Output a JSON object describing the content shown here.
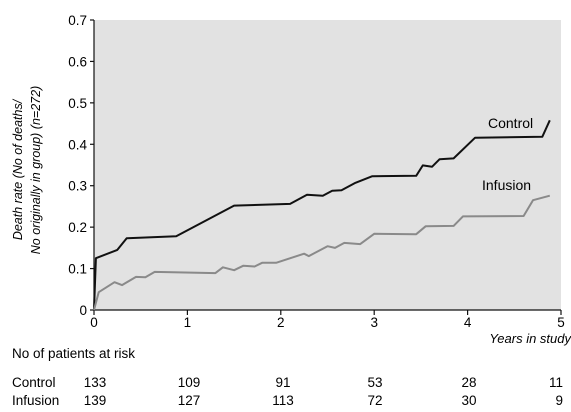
{
  "chart_data": {
    "type": "line",
    "ylabel_line1": "Death rate (No of deaths/",
    "ylabel_line2": "No originally in group) (n=272)",
    "xlabel": "Years in study",
    "xlim": [
      0,
      5
    ],
    "ylim": [
      0,
      0.7
    ],
    "grid": false,
    "x_ticks": [
      "0",
      "1",
      "2",
      "3",
      "4",
      "5"
    ],
    "y_ticks": [
      "0",
      "0.1",
      "0.2",
      "0.3",
      "0.4",
      "0.5",
      "0.6",
      "0.7"
    ],
    "series": [
      {
        "name": "Control",
        "color": "#111111",
        "x": [
          0,
          0.02,
          0.25,
          0.35,
          0.88,
          1.5,
          2.1,
          2.28,
          2.45,
          2.55,
          2.65,
          2.8,
          2.98,
          3.45,
          3.52,
          3.62,
          3.7,
          3.85,
          4.08,
          4.8,
          4.88
        ],
        "y": [
          0,
          0.125,
          0.145,
          0.173,
          0.178,
          0.252,
          0.256,
          0.278,
          0.276,
          0.288,
          0.289,
          0.307,
          0.323,
          0.324,
          0.349,
          0.346,
          0.364,
          0.366,
          0.416,
          0.418,
          0.458
        ]
      },
      {
        "name": "Infusion",
        "color": "#8a8a8a",
        "x": [
          0,
          0.05,
          0.22,
          0.3,
          0.45,
          0.55,
          0.65,
          1.3,
          1.38,
          1.5,
          1.6,
          1.72,
          1.8,
          1.95,
          2.25,
          2.3,
          2.5,
          2.58,
          2.68,
          2.85,
          3.0,
          3.45,
          3.55,
          3.85,
          3.95,
          4.6,
          4.7,
          4.88
        ],
        "y": [
          0,
          0.043,
          0.067,
          0.06,
          0.08,
          0.079,
          0.092,
          0.089,
          0.103,
          0.096,
          0.107,
          0.105,
          0.114,
          0.114,
          0.136,
          0.13,
          0.154,
          0.15,
          0.162,
          0.159,
          0.184,
          0.183,
          0.202,
          0.203,
          0.226,
          0.227,
          0.265,
          0.276
        ]
      }
    ]
  },
  "risk_table": {
    "title": "No of patients at risk",
    "rows": [
      {
        "label": "Control",
        "values": [
          "133",
          "109",
          "91",
          "53",
          "28",
          "11"
        ]
      },
      {
        "label": "Infusion",
        "values": [
          "139",
          "127",
          "113",
          "72",
          "30",
          "9"
        ]
      }
    ]
  }
}
